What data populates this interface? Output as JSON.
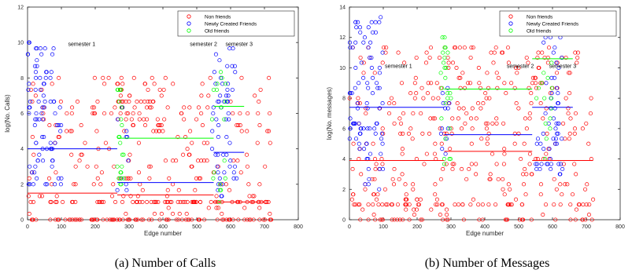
{
  "chart_data": [
    {
      "type": "scatter",
      "caption": "(a) Number of Calls",
      "xlabel": "Edge number",
      "ylabel": "log(No. Calls)",
      "xlim": [
        0,
        800
      ],
      "ylim": [
        0,
        12
      ],
      "xticks": [
        0,
        100,
        200,
        300,
        400,
        500,
        600,
        700,
        800
      ],
      "yticks": [
        0,
        2,
        4,
        6,
        8,
        10,
        12
      ],
      "legend": {
        "placement": "top-right",
        "entries": [
          {
            "name": "Non friends",
            "color": "#ff0000"
          },
          {
            "name": "Newly Created Friends",
            "color": "#0000ff"
          },
          {
            "name": "Old friends",
            "color": "#00ff00"
          }
        ]
      },
      "annotations": [
        {
          "text": "semester 1",
          "x": 160,
          "y": 9.8
        },
        {
          "text": "semester 2",
          "x": 520,
          "y": 9.8
        },
        {
          "text": "semester 3",
          "x": 625,
          "y": 9.8
        }
      ],
      "mean_lines": [
        {
          "series": "Non friends",
          "x": [
            0,
            265
          ],
          "y": 1.5
        },
        {
          "series": "Non friends",
          "x": [
            265,
            550
          ],
          "y": 1.4
        },
        {
          "series": "Non friends",
          "x": [
            550,
            700
          ],
          "y": 1.0
        },
        {
          "series": "Newly Created Friends",
          "x": [
            0,
            265
          ],
          "y": 4.0
        },
        {
          "series": "Newly Created Friends",
          "x": [
            265,
            550
          ],
          "y": 2.1
        },
        {
          "series": "Newly Created Friends",
          "x": [
            550,
            640
          ],
          "y": 3.8
        },
        {
          "series": "Old friends",
          "x": [
            265,
            550
          ],
          "y": 4.6
        },
        {
          "series": "Old friends",
          "x": [
            550,
            640
          ],
          "y": 6.4
        }
      ],
      "clusters": [
        {
          "series": "Non friends",
          "x": [
            0,
            720
          ],
          "y": [
            0,
            8
          ],
          "n": 360,
          "base": [
            [
              0,
              0.22
            ],
            [
              1,
              0.2
            ]
          ]
        },
        {
          "series": "Non friends",
          "x": [
            265,
            420
          ],
          "y": [
            5,
            8.2
          ],
          "n": 40
        },
        {
          "series": "Newly Created Friends",
          "x": [
            0,
            100
          ],
          "y": [
            1.5,
            10
          ],
          "n": 85
        },
        {
          "series": "Newly Created Friends",
          "x": [
            265,
            300
          ],
          "y": [
            1,
            6.5
          ],
          "n": 10
        },
        {
          "series": "Newly Created Friends",
          "x": [
            545,
            620
          ],
          "y": [
            1,
            9.8
          ],
          "n": 55
        },
        {
          "series": "Old friends",
          "x": [
            265,
            285
          ],
          "y": [
            1.5,
            8
          ],
          "n": 22
        },
        {
          "series": "Old friends",
          "x": [
            545,
            585
          ],
          "y": [
            1,
            10
          ],
          "n": 18
        }
      ]
    },
    {
      "type": "scatter",
      "caption": "(b) Number of Messages",
      "xlabel": "Edge number",
      "ylabel": "log(No. messages)",
      "xlim": [
        0,
        800
      ],
      "ylim": [
        0,
        14
      ],
      "xticks": [
        0,
        100,
        200,
        300,
        400,
        500,
        600,
        700,
        800
      ],
      "yticks": [
        0,
        2,
        4,
        6,
        8,
        10,
        12,
        14
      ],
      "legend": {
        "placement": "top-right",
        "entries": [
          {
            "name": "Non friends",
            "color": "#ff0000"
          },
          {
            "name": "Newly Created Friends",
            "color": "#0000ff"
          },
          {
            "name": "Old friends",
            "color": "#00ff00"
          }
        ]
      },
      "annotations": [
        {
          "text": "semester 1",
          "x": 145,
          "y": 10.0
        },
        {
          "text": "semester 2",
          "x": 505,
          "y": 10.0
        },
        {
          "text": "semester 3",
          "x": 630,
          "y": 10.0
        }
      ],
      "mean_lines": [
        {
          "series": "Non friends",
          "x": [
            0,
            280
          ],
          "y": 3.9
        },
        {
          "series": "Non friends",
          "x": [
            280,
            540
          ],
          "y": 4.5
        },
        {
          "series": "Non friends",
          "x": [
            540,
            720
          ],
          "y": 3.9
        },
        {
          "series": "Newly Created Friends",
          "x": [
            0,
            280
          ],
          "y": 7.4
        },
        {
          "series": "Newly Created Friends",
          "x": [
            280,
            540
          ],
          "y": 5.6
        },
        {
          "series": "Newly Created Friends",
          "x": [
            540,
            660
          ],
          "y": 7.4
        },
        {
          "series": "Old friends",
          "x": [
            280,
            540
          ],
          "y": 8.6
        },
        {
          "series": "Old friends",
          "x": [
            540,
            660
          ],
          "y": 10.6
        }
      ],
      "clusters": [
        {
          "series": "Non friends",
          "x": [
            0,
            720
          ],
          "y": [
            0,
            11.5
          ],
          "n": 420,
          "base": [
            [
              0,
              0.08
            ],
            [
              1,
              0.08
            ]
          ]
        },
        {
          "series": "Newly Created Friends",
          "x": [
            0,
            100
          ],
          "y": [
            2,
            13.5
          ],
          "n": 90
        },
        {
          "series": "Newly Created Friends",
          "x": [
            270,
            300
          ],
          "y": [
            3,
            9
          ],
          "n": 12
        },
        {
          "series": "Newly Created Friends",
          "x": [
            550,
            630
          ],
          "y": [
            3,
            12.5
          ],
          "n": 60
        },
        {
          "series": "Old friends",
          "x": [
            270,
            300
          ],
          "y": [
            3.5,
            13.5
          ],
          "n": 25
        },
        {
          "series": "Old friends",
          "x": [
            550,
            600
          ],
          "y": [
            4,
            11
          ],
          "n": 15
        }
      ]
    }
  ]
}
